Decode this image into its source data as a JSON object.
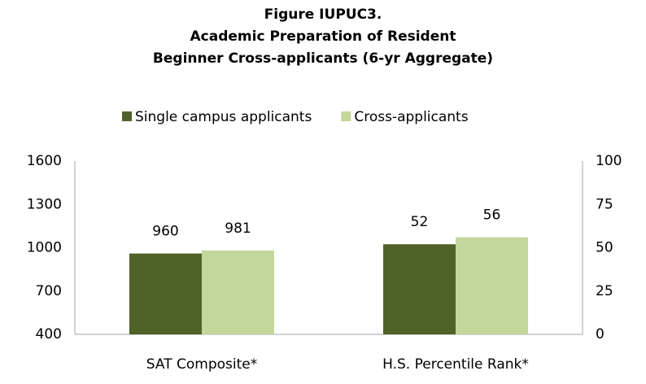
{
  "chart_data": {
    "type": "bar",
    "title": [
      "Figure IUPUC3.",
      "Academic Preparation of Resident",
      "Beginner Cross-applicants (6-yr Aggregate)"
    ],
    "categories": [
      "SAT Composite*",
      "H.S. Percentile Rank*"
    ],
    "category_axis": [
      "y",
      "y2"
    ],
    "series": [
      {
        "name": "Single campus applicants",
        "color": "#4f6228",
        "values": [
          960,
          52
        ]
      },
      {
        "name": "Cross-applicants",
        "color": "#c3d69b",
        "values": [
          981,
          56
        ]
      }
    ],
    "ylim": [
      400,
      1600
    ],
    "yticks": [
      400,
      700,
      1000,
      1300,
      1600
    ],
    "y2lim": [
      0,
      100
    ],
    "y2ticks": [
      0,
      25,
      50,
      75,
      100
    ],
    "legend": "top",
    "grid": false
  }
}
